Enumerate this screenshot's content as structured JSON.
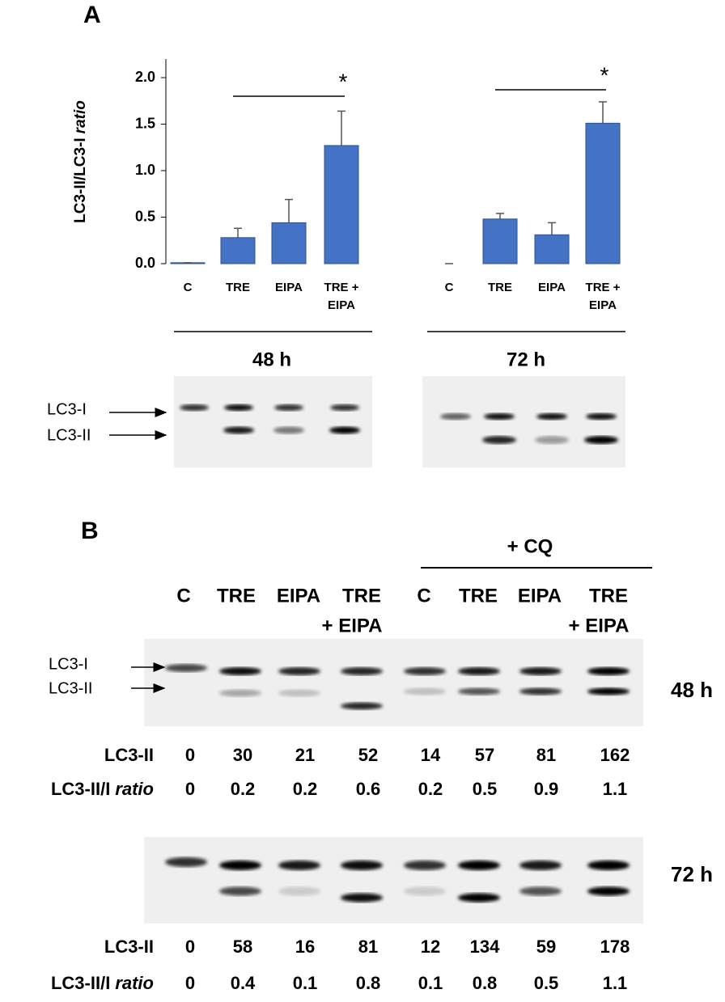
{
  "chart_data": {
    "type": "bar",
    "panel_label": "A",
    "y_label": "LC3-II/LC3-I",
    "y_label_italic": "ratio",
    "categories": [
      "C",
      "TRE",
      "EIPA",
      "TRE + EIPA",
      "C",
      "TRE",
      "EIPA",
      "TRE + EIPA"
    ],
    "values": [
      0.01,
      0.28,
      0.44,
      1.27,
      0,
      0.48,
      0.31,
      1.51
    ],
    "errors": [
      0,
      0.1,
      0.25,
      0.37,
      0,
      0.06,
      0.13,
      0.23
    ],
    "color": "#4472c4",
    "ylim": [
      0,
      2.2
    ],
    "yticks": [
      {
        "value": 0,
        "label": "0.0"
      },
      {
        "value": 0.5,
        "label": "0.5"
      },
      {
        "value": 1,
        "label": "1.0"
      },
      {
        "value": 1.5,
        "label": "1.5"
      },
      {
        "value": 2,
        "label": "2.0"
      }
    ],
    "annotations": [
      "*",
      "*"
    ],
    "group_labels": [
      "48 h",
      "72 h"
    ]
  },
  "blot_a": {
    "band_labels": [
      "LC3-I",
      "LC3-II"
    ]
  },
  "panel_b": {
    "label": "B",
    "cq_label": "+ CQ",
    "lanes": [
      [
        "C"
      ],
      [
        "TRE"
      ],
      [
        "EIPA"
      ],
      [
        "TRE",
        "+ EIPA"
      ],
      [
        "C"
      ],
      [
        "TRE"
      ],
      [
        "EIPA"
      ],
      [
        "TRE",
        "+ EIPA"
      ]
    ],
    "band_labels": [
      "LC3-I",
      "LC3-II"
    ],
    "blots": [
      {
        "time": "48 h",
        "rows": [
          {
            "label": "LC3-II",
            "values": [
              0,
              30,
              21,
              52,
              14,
              57,
              81,
              162
            ]
          },
          {
            "label": "LC3-II/I",
            "label_italic": "ratio",
            "values": [
              0,
              0.2,
              0.2,
              0.6,
              0.2,
              0.5,
              0.9,
              1.1
            ]
          }
        ]
      },
      {
        "time": "72 h",
        "rows": [
          {
            "label": "LC3-II",
            "values": [
              0,
              58,
              16,
              81,
              12,
              134,
              59,
              178
            ]
          },
          {
            "label": "LC3-II/I",
            "label_italic": "ratio",
            "values": [
              0,
              0.4,
              0.1,
              0.8,
              0.1,
              0.8,
              0.5,
              1.1
            ]
          }
        ]
      }
    ]
  }
}
